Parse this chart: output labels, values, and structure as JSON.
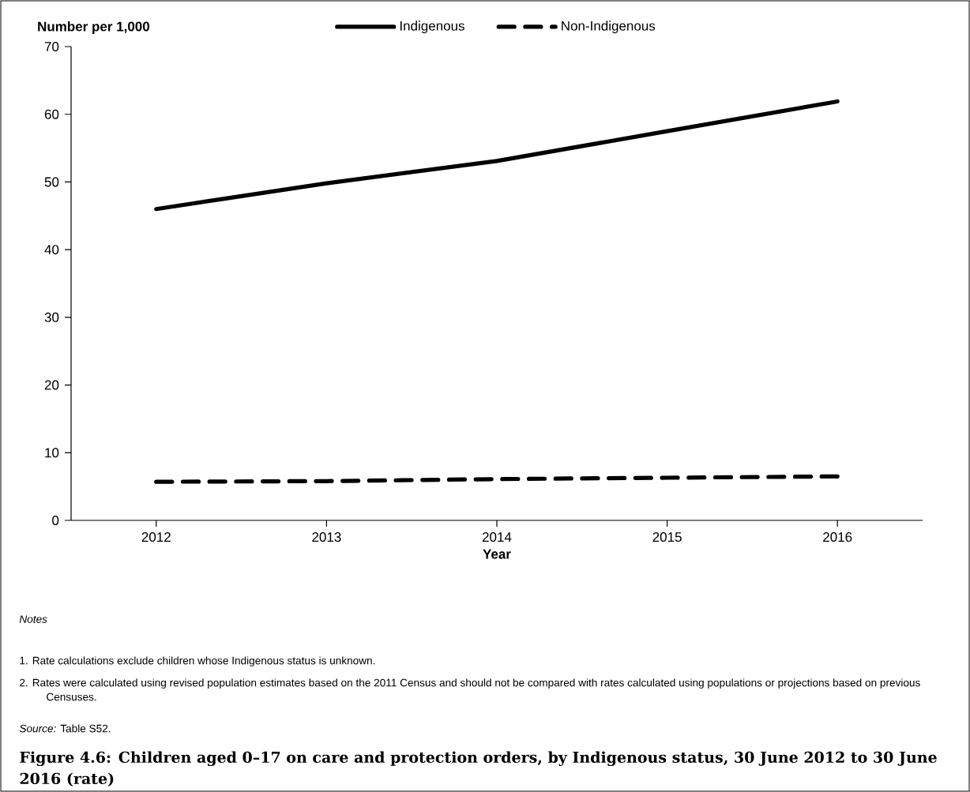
{
  "chart_data": {
    "type": "line",
    "title": "Figure 4.6: Children aged 0–17 on care and protection orders, by Indigenous status, 30 June 2012 to 30 June 2016 (rate)",
    "ylabel": "Number per 1,000",
    "xlabel": "Year",
    "categories": [
      "2012",
      "2013",
      "2014",
      "2015",
      "2016"
    ],
    "series": [
      {
        "name": "Indigenous",
        "color": "#000000",
        "line_style": "solid",
        "values": [
          46.0,
          49.8,
          53.1,
          57.5,
          61.9
        ]
      },
      {
        "name": "Non-Indigenous",
        "color": "#000000",
        "line_style": "dashed",
        "values": [
          5.7,
          5.8,
          6.1,
          6.3,
          6.5
        ]
      }
    ],
    "ylim": [
      0,
      70
    ],
    "yticks": [
      0,
      10,
      20,
      30,
      40,
      50,
      60,
      70
    ],
    "grid": false,
    "legend": "top",
    "marker": "none",
    "annotations": [
      "*Notes*",
      "1. Rate calculations exclude children whose Indigenous status is unknown.",
      "2. Rates were calculated using revised population estimates based on the 2011 Census and should not be compared with rates calculated using populations or projections based on previous Censuses.",
      "*Source:* Table S52."
    ]
  }
}
